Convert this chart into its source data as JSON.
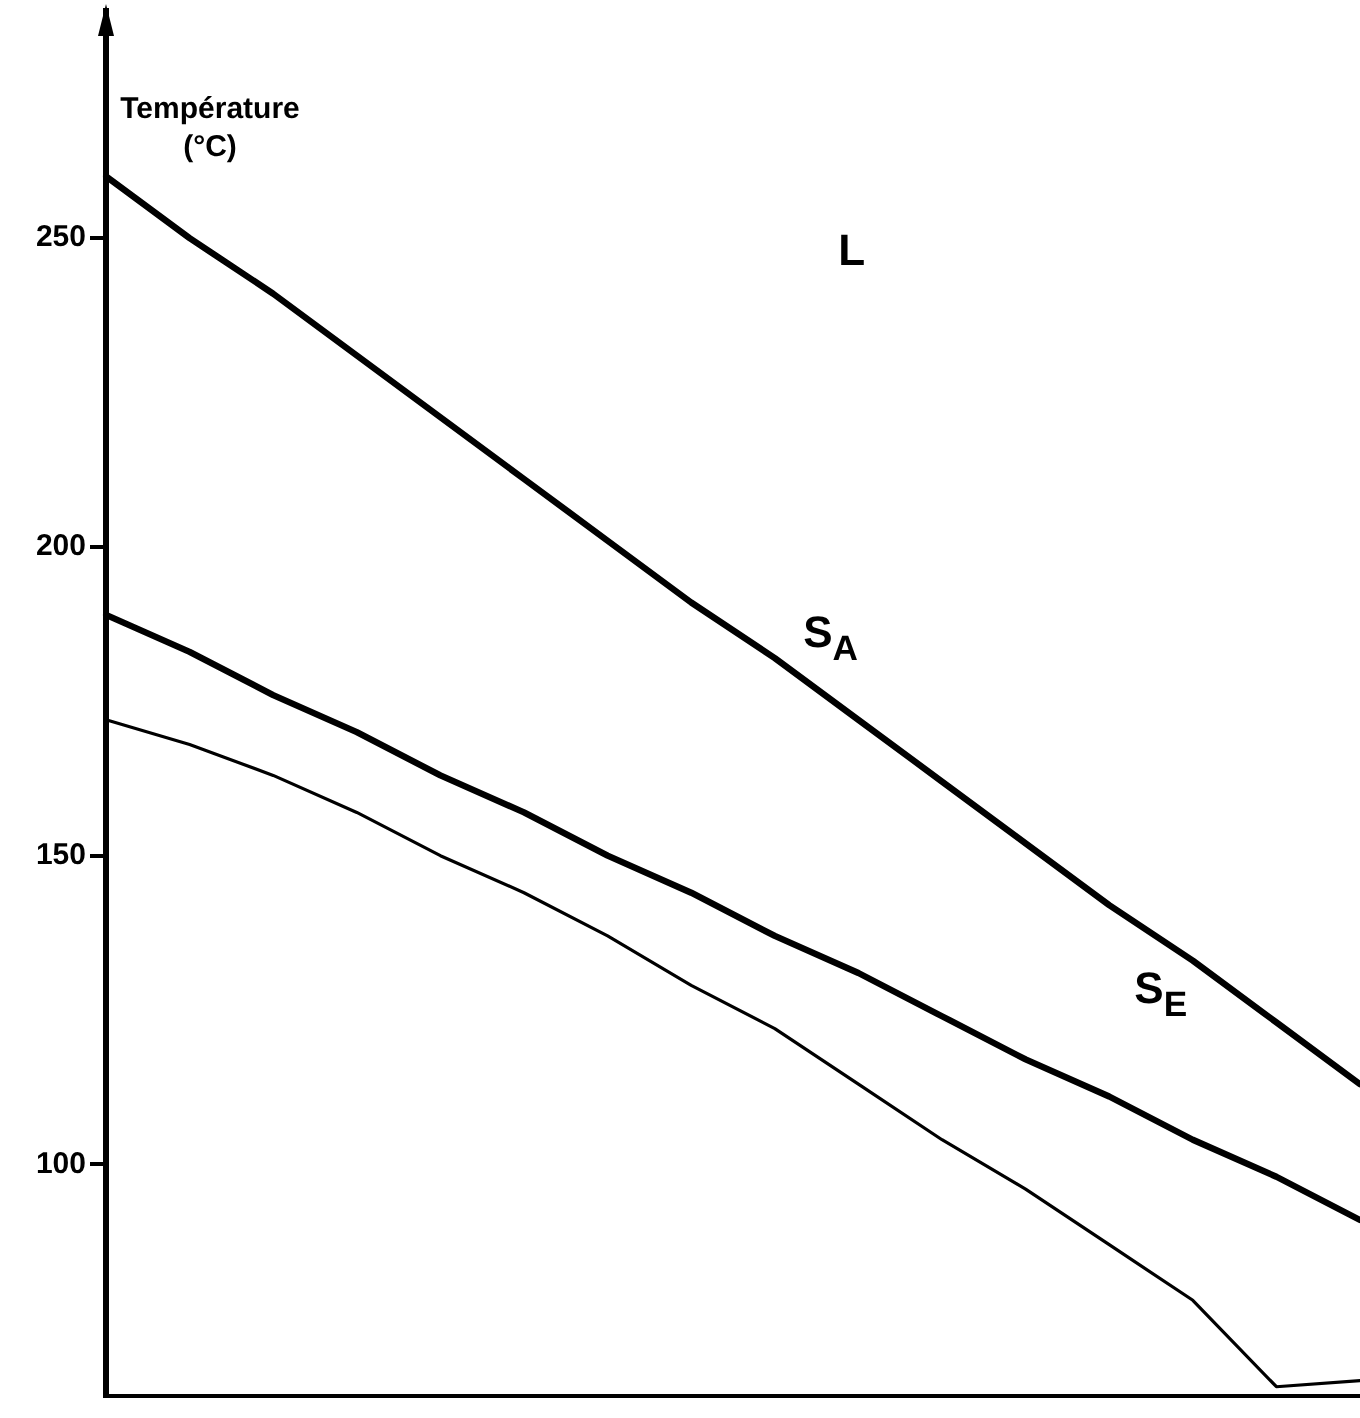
{
  "chart_data": {
    "type": "line",
    "ylabel": "Température\n(°C)",
    "categories": [
      null,
      null,
      null,
      null,
      null,
      null,
      null,
      null,
      null,
      null,
      null,
      null,
      null,
      null,
      null,
      null
    ],
    "series": [
      {
        "color": "#000000",
        "values": [
          260,
          250,
          241,
          231,
          221,
          211,
          201,
          191,
          182,
          172,
          162,
          152,
          142,
          133,
          123,
          113
        ]
      },
      {
        "color": "#000000",
        "values": [
          189,
          183,
          176,
          170,
          163,
          157,
          150,
          144,
          137,
          131,
          124,
          117,
          111,
          104,
          98,
          91
        ]
      },
      {
        "color": "#000000",
        "values": [
          172,
          168,
          163,
          157,
          150,
          144,
          137,
          129,
          122,
          113,
          104,
          96,
          87,
          78,
          64,
          65
        ]
      }
    ],
    "ylim": [
      62.5,
      285
    ],
    "yticks": [
      100,
      150,
      200,
      250
    ],
    "annotations": [
      "L",
      "S$_{A}$",
      "S$_{E}$"
    ],
    "grid": false,
    "legend": false,
    "marker": "none",
    "line_style": "solid",
    "tick_labels": "y"
  }
}
